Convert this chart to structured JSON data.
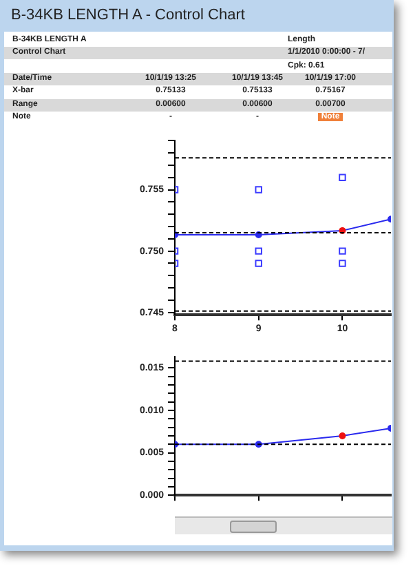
{
  "chart_data": [
    {
      "type": "scatter",
      "title": "B-34KB LENGTH A - Control Chart",
      "annotations": [
        "B-34KB LENGTH A",
        "Length",
        "Control Chart",
        "1/1/2010 0:00:00 - 7/",
        "Cpk: 0.61",
        "Date/Time",
        "10/1/19 13:25",
        "10/1/19 13:45",
        "10/1/19 17:00",
        "X-bar",
        "0.75133",
        "0.75133",
        "0.75167",
        "Range",
        "0.00600",
        "0.00600",
        "0.00700",
        "Note",
        "-",
        "-",
        "Note"
      ],
      "xlim": [
        8,
        10.58
      ],
      "xticks": [
        8,
        9,
        10
      ],
      "ylim": [
        0.7448,
        0.759
      ],
      "yticks": [
        0.745,
        {
          "value": 0.746,
          "label": null
        },
        {
          "value": 0.747,
          "label": null
        },
        {
          "value": 0.748,
          "label": null
        },
        {
          "value": 0.749,
          "label": null
        },
        {
          "value": 0.75,
          "label": "0.750"
        },
        {
          "value": 0.751,
          "label": null
        },
        {
          "value": 0.752,
          "label": null
        },
        {
          "value": 0.753,
          "label": null
        },
        {
          "value": 0.754,
          "label": null
        },
        0.755,
        {
          "value": 0.756,
          "label": null
        },
        {
          "value": 0.757,
          "label": null
        },
        {
          "value": 0.758,
          "label": null
        },
        {
          "value": 0.759,
          "label": null
        }
      ],
      "grid": false,
      "legend": false,
      "series": [
        {
          "marker": "square",
          "color": "#3b3bff",
          "x": [
            8,
            8,
            8,
            9,
            9,
            9,
            10,
            10,
            10
          ],
          "values": [
            0.755,
            0.75,
            0.749,
            0.755,
            0.75,
            0.749,
            0.756,
            0.75,
            0.749
          ]
        },
        {
          "type": "line",
          "marker": "circle",
          "color": "#2a2aee",
          "colors": [
            "#2a2aee",
            "#2a2aee",
            "#ee1111",
            "#2a2aee"
          ],
          "x": [
            8,
            9,
            10,
            10.58
          ],
          "values": [
            0.75133,
            0.75133,
            0.75167,
            0.7526
          ]
        }
      ],
      "ref_lines": [
        {
          "axis": "y",
          "value": 0.7576,
          "label": null,
          "color": "#000000",
          "line_style": "dashed"
        },
        {
          "axis": "y",
          "value": 0.7515,
          "label": null,
          "color": "#000000",
          "line_style": "dashed"
        },
        {
          "axis": "y",
          "value": 0.7451,
          "label": null,
          "color": "#000000",
          "line_style": "dashed"
        }
      ]
    },
    {
      "type": "line",
      "tick_labels": "y",
      "xlim": [
        8,
        10.58
      ],
      "xticks": [
        {
          "value": 8,
          "label": null
        },
        {
          "value": 9,
          "label": null
        },
        {
          "value": 10,
          "label": null
        }
      ],
      "ylim": [
        0,
        0.0163
      ],
      "yticks": [
        {
          "value": 0,
          "label": "0.000"
        },
        {
          "value": 0.001,
          "label": null
        },
        {
          "value": 0.002,
          "label": null
        },
        {
          "value": 0.003,
          "label": null
        },
        {
          "value": 0.004,
          "label": null
        },
        0.005,
        {
          "value": 0.006,
          "label": null
        },
        {
          "value": 0.007,
          "label": null
        },
        {
          "value": 0.008,
          "label": null
        },
        {
          "value": 0.009,
          "label": null
        },
        {
          "value": 0.01,
          "label": "0.010"
        },
        {
          "value": 0.011,
          "label": null
        },
        {
          "value": 0.012,
          "label": null
        },
        {
          "value": 0.013,
          "label": null
        },
        {
          "value": 0.014,
          "label": null
        },
        0.015
      ],
      "grid": false,
      "legend": false,
      "series": [
        {
          "marker": "circle",
          "color": "#2a2aee",
          "colors": [
            "#2a2aee",
            "#2a2aee",
            "#ee1111",
            "#2a2aee"
          ],
          "x": [
            8,
            9,
            10,
            10.58
          ],
          "values": [
            0.006,
            0.006,
            0.007,
            0.0079
          ]
        }
      ],
      "ref_lines": [
        {
          "axis": "y",
          "value": 0.0158,
          "label": null,
          "color": "#000000",
          "line_style": "dashed"
        },
        {
          "axis": "y",
          "value": 0.006,
          "label": null,
          "color": "#000000",
          "line_style": "dashed"
        }
      ]
    }
  ]
}
